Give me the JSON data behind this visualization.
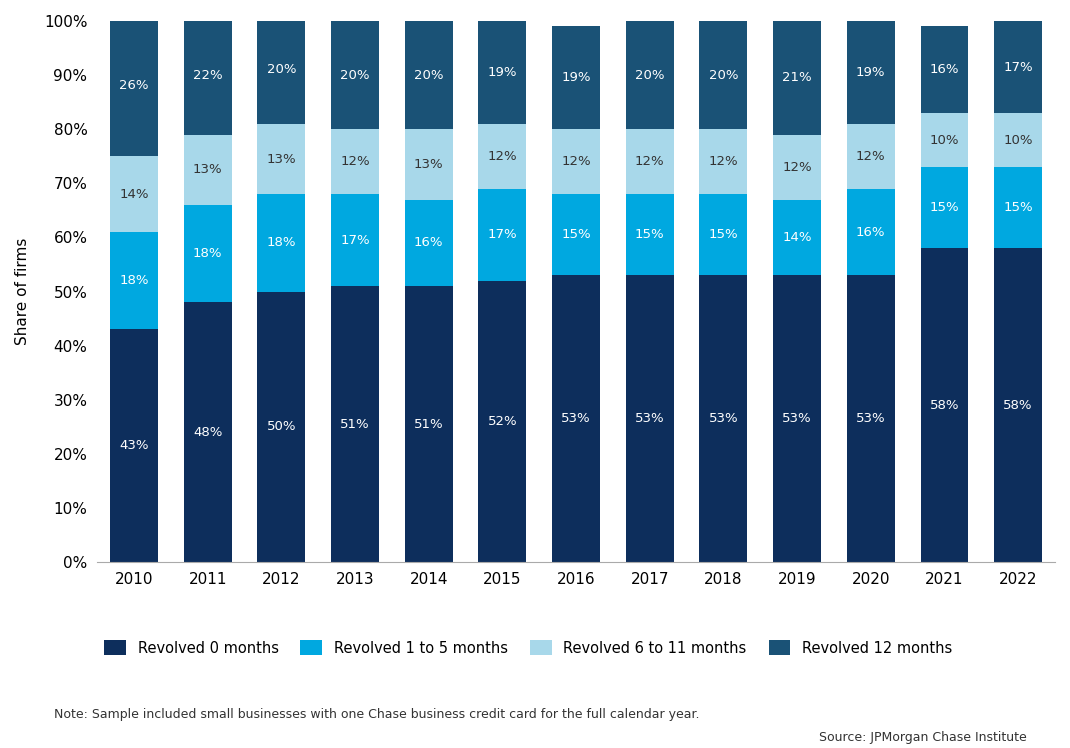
{
  "years": [
    2010,
    2011,
    2012,
    2013,
    2014,
    2015,
    2016,
    2017,
    2018,
    2019,
    2020,
    2021,
    2022
  ],
  "revolved_0": [
    43,
    48,
    50,
    51,
    51,
    52,
    53,
    53,
    53,
    53,
    53,
    58,
    58
  ],
  "revolved_1_5": [
    18,
    18,
    18,
    17,
    16,
    17,
    15,
    15,
    15,
    14,
    16,
    15,
    15
  ],
  "revolved_6_11": [
    14,
    13,
    13,
    12,
    13,
    12,
    12,
    12,
    12,
    12,
    12,
    10,
    10
  ],
  "revolved_12": [
    26,
    22,
    20,
    20,
    20,
    19,
    19,
    20,
    20,
    21,
    19,
    16,
    17
  ],
  "color_0": "#0d2e5c",
  "color_1_5": "#00a8e0",
  "color_6_11": "#a8d8ea",
  "color_12": "#1a5276",
  "ylabel": "Share of firms",
  "note": "Note: Sample included small businesses with one Chase business credit card for the full calendar year.",
  "source": "Source: JPMorgan Chase Institute",
  "legend_labels": [
    "Revolved 0 months",
    "Revolved 1 to 5 months",
    "Revolved 6 to 11 months",
    "Revolved 12 months"
  ],
  "yticks": [
    0,
    10,
    20,
    30,
    40,
    50,
    60,
    70,
    80,
    90,
    100
  ],
  "bar_width": 0.65
}
